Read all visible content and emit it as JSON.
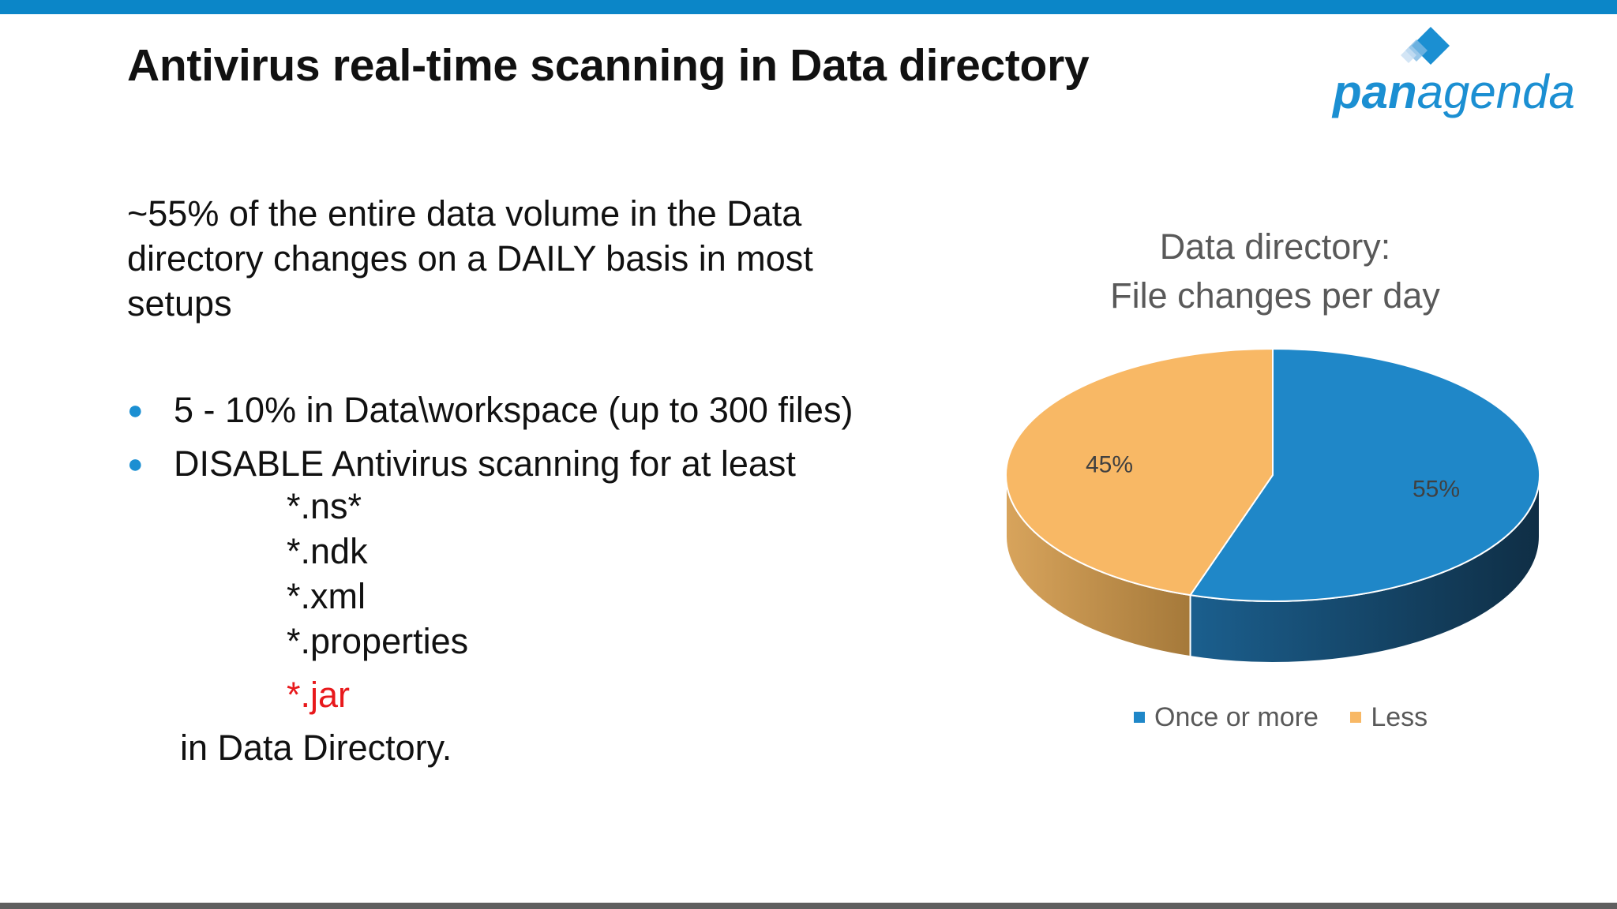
{
  "slide": {
    "title": "Antivirus real-time scanning in Data directory",
    "intro": "~55% of the entire data volume in the Data directory changes on a DAILY basis in most setups",
    "bullets": [
      "5 - 10% in Data\\workspace (up to 300 files)",
      "DISABLE Antivirus scanning for at least"
    ],
    "extensions": [
      "*.ns*",
      "*.ndk",
      "*.xml",
      "*.properties",
      "*.jar"
    ],
    "outro": "in Data Directory."
  },
  "logo": {
    "pan": "pan",
    "agenda": "agenda"
  },
  "colors": {
    "accent": "#0b86c8",
    "highlight_red": "#e8191c",
    "series_once_or_more": "#1f87c8",
    "series_less": "#f8b865"
  },
  "chart_data": {
    "type": "pie",
    "title": "Data directory: File changes per day",
    "title_lines": [
      "Data directory:",
      "File changes per day"
    ],
    "categories": [
      "Once or more",
      "Less"
    ],
    "values": [
      55,
      45
    ],
    "labels": [
      "55%",
      "45%"
    ],
    "colors": [
      "#1f87c8",
      "#f8b865"
    ],
    "style": "3d",
    "legend_position": "bottom"
  }
}
